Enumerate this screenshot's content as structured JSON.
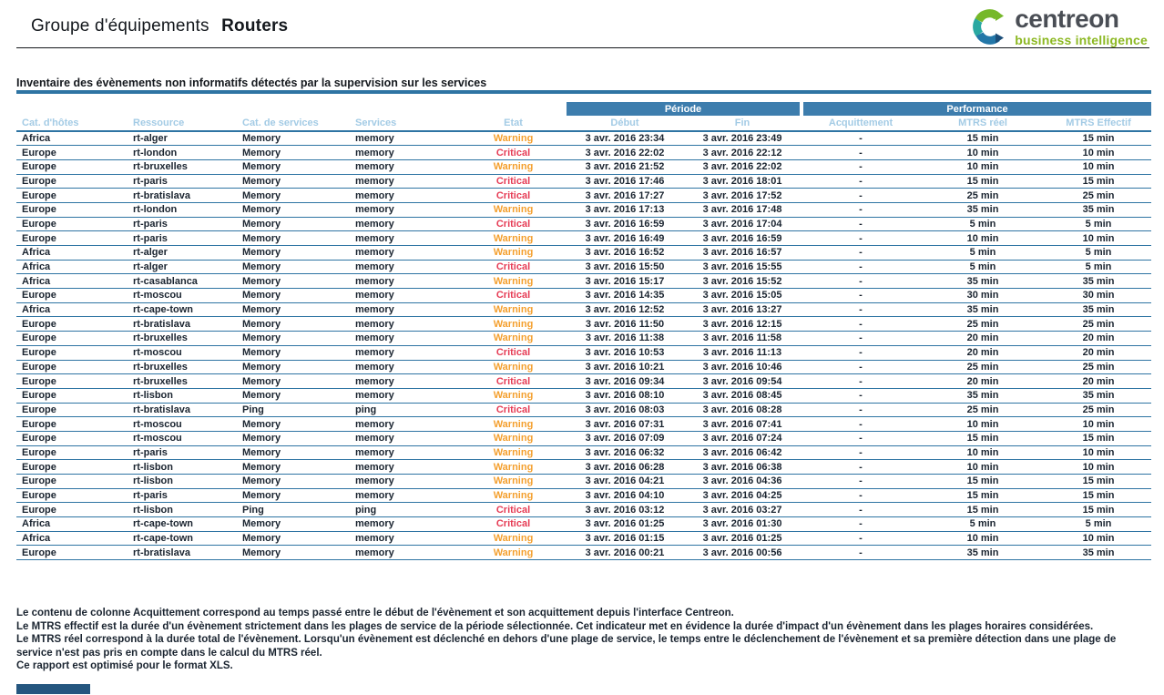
{
  "header": {
    "title_regular": "Groupe d'équipements",
    "title_bold": "Routers",
    "logo": {
      "name": "centreon",
      "tagline": "business intelligence"
    }
  },
  "section": {
    "title": "Inventaire des évènements non informatifs détectés par la supervision sur les services"
  },
  "table": {
    "group_headers": {
      "periode": "Période",
      "performance": "Performance"
    },
    "columns": [
      "Cat. d'hôtes",
      "Ressource",
      "Cat. de services",
      "Services",
      "Etat",
      "Début",
      "Fin",
      "Acquittement",
      "MTRS réel",
      "MTRS Effectif"
    ],
    "column_keys": [
      "host-category",
      "resource",
      "service-category",
      "service",
      "state",
      "start",
      "end",
      "acknowledgement",
      "mtrs-real",
      "mtrs-effective"
    ],
    "rows": [
      [
        "Africa",
        "rt-alger",
        "Memory",
        "memory",
        "Warning",
        "3 avr. 2016 23:34",
        "3 avr. 2016 23:49",
        "-",
        "15 min",
        "15 min"
      ],
      [
        "Europe",
        "rt-london",
        "Memory",
        "memory",
        "Critical",
        "3 avr. 2016 22:02",
        "3 avr. 2016 22:12",
        "-",
        "10 min",
        "10 min"
      ],
      [
        "Europe",
        "rt-bruxelles",
        "Memory",
        "memory",
        "Warning",
        "3 avr. 2016 21:52",
        "3 avr. 2016 22:02",
        "-",
        "10 min",
        "10 min"
      ],
      [
        "Europe",
        "rt-paris",
        "Memory",
        "memory",
        "Critical",
        "3 avr. 2016 17:46",
        "3 avr. 2016 18:01",
        "-",
        "15 min",
        "15 min"
      ],
      [
        "Europe",
        "rt-bratislava",
        "Memory",
        "memory",
        "Critical",
        "3 avr. 2016 17:27",
        "3 avr. 2016 17:52",
        "-",
        "25 min",
        "25 min"
      ],
      [
        "Europe",
        "rt-london",
        "Memory",
        "memory",
        "Warning",
        "3 avr. 2016 17:13",
        "3 avr. 2016 17:48",
        "-",
        "35 min",
        "35 min"
      ],
      [
        "Europe",
        "rt-paris",
        "Memory",
        "memory",
        "Critical",
        "3 avr. 2016 16:59",
        "3 avr. 2016 17:04",
        "-",
        "5 min",
        "5 min"
      ],
      [
        "Europe",
        "rt-paris",
        "Memory",
        "memory",
        "Warning",
        "3 avr. 2016 16:49",
        "3 avr. 2016 16:59",
        "-",
        "10 min",
        "10 min"
      ],
      [
        "Africa",
        "rt-alger",
        "Memory",
        "memory",
        "Warning",
        "3 avr. 2016 16:52",
        "3 avr. 2016 16:57",
        "-",
        "5 min",
        "5 min"
      ],
      [
        "Africa",
        "rt-alger",
        "Memory",
        "memory",
        "Critical",
        "3 avr. 2016 15:50",
        "3 avr. 2016 15:55",
        "-",
        "5 min",
        "5 min"
      ],
      [
        "Africa",
        "rt-casablanca",
        "Memory",
        "memory",
        "Warning",
        "3 avr. 2016 15:17",
        "3 avr. 2016 15:52",
        "-",
        "35 min",
        "35 min"
      ],
      [
        "Europe",
        "rt-moscou",
        "Memory",
        "memory",
        "Critical",
        "3 avr. 2016 14:35",
        "3 avr. 2016 15:05",
        "-",
        "30 min",
        "30 min"
      ],
      [
        "Africa",
        "rt-cape-town",
        "Memory",
        "memory",
        "Warning",
        "3 avr. 2016 12:52",
        "3 avr. 2016 13:27",
        "-",
        "35 min",
        "35 min"
      ],
      [
        "Europe",
        "rt-bratislava",
        "Memory",
        "memory",
        "Warning",
        "3 avr. 2016 11:50",
        "3 avr. 2016 12:15",
        "-",
        "25 min",
        "25 min"
      ],
      [
        "Europe",
        "rt-bruxelles",
        "Memory",
        "memory",
        "Warning",
        "3 avr. 2016 11:38",
        "3 avr. 2016 11:58",
        "-",
        "20 min",
        "20 min"
      ],
      [
        "Europe",
        "rt-moscou",
        "Memory",
        "memory",
        "Critical",
        "3 avr. 2016 10:53",
        "3 avr. 2016 11:13",
        "-",
        "20 min",
        "20 min"
      ],
      [
        "Europe",
        "rt-bruxelles",
        "Memory",
        "memory",
        "Warning",
        "3 avr. 2016 10:21",
        "3 avr. 2016 10:46",
        "-",
        "25 min",
        "25 min"
      ],
      [
        "Europe",
        "rt-bruxelles",
        "Memory",
        "memory",
        "Critical",
        "3 avr. 2016 09:34",
        "3 avr. 2016 09:54",
        "-",
        "20 min",
        "20 min"
      ],
      [
        "Europe",
        "rt-lisbon",
        "Memory",
        "memory",
        "Warning",
        "3 avr. 2016 08:10",
        "3 avr. 2016 08:45",
        "-",
        "35 min",
        "35 min"
      ],
      [
        "Europe",
        "rt-bratislava",
        "Ping",
        "ping",
        "Critical",
        "3 avr. 2016 08:03",
        "3 avr. 2016 08:28",
        "-",
        "25 min",
        "25 min"
      ],
      [
        "Europe",
        "rt-moscou",
        "Memory",
        "memory",
        "Warning",
        "3 avr. 2016 07:31",
        "3 avr. 2016 07:41",
        "-",
        "10 min",
        "10 min"
      ],
      [
        "Europe",
        "rt-moscou",
        "Memory",
        "memory",
        "Warning",
        "3 avr. 2016 07:09",
        "3 avr. 2016 07:24",
        "-",
        "15 min",
        "15 min"
      ],
      [
        "Europe",
        "rt-paris",
        "Memory",
        "memory",
        "Warning",
        "3 avr. 2016 06:32",
        "3 avr. 2016 06:42",
        "-",
        "10 min",
        "10 min"
      ],
      [
        "Europe",
        "rt-lisbon",
        "Memory",
        "memory",
        "Warning",
        "3 avr. 2016 06:28",
        "3 avr. 2016 06:38",
        "-",
        "10 min",
        "10 min"
      ],
      [
        "Europe",
        "rt-lisbon",
        "Memory",
        "memory",
        "Warning",
        "3 avr. 2016 04:21",
        "3 avr. 2016 04:36",
        "-",
        "15 min",
        "15 min"
      ],
      [
        "Europe",
        "rt-paris",
        "Memory",
        "memory",
        "Warning",
        "3 avr. 2016 04:10",
        "3 avr. 2016 04:25",
        "-",
        "15 min",
        "15 min"
      ],
      [
        "Europe",
        "rt-lisbon",
        "Ping",
        "ping",
        "Critical",
        "3 avr. 2016 03:12",
        "3 avr. 2016 03:27",
        "-",
        "15 min",
        "15 min"
      ],
      [
        "Africa",
        "rt-cape-town",
        "Memory",
        "memory",
        "Critical",
        "3 avr. 2016 01:25",
        "3 avr. 2016 01:30",
        "-",
        "5 min",
        "5 min"
      ],
      [
        "Africa",
        "rt-cape-town",
        "Memory",
        "memory",
        "Warning",
        "3 avr. 2016 01:15",
        "3 avr. 2016 01:25",
        "-",
        "10 min",
        "10 min"
      ],
      [
        "Europe",
        "rt-bratislava",
        "Memory",
        "memory",
        "Warning",
        "3 avr. 2016 00:21",
        "3 avr. 2016 00:56",
        "-",
        "35 min",
        "35 min"
      ]
    ]
  },
  "footer": {
    "notes": [
      "Le contenu de colonne Acquittement correspond au temps passé entre le début de l'évènement et son acquittement depuis l'interface Centreon.",
      "Le MTRS effectif est la durée d'un évènement strictement dans les plages de service de la période sélectionnée. Cet indicateur met en évidence la durée d'impact d'un évènement dans les plages horaires considérées.",
      "Le MTRS réel correspond à la durée total de l'évènement. Lorsqu'un évènement est déclenché en dehors d'une plage de service, le temps entre le déclenchement de l'évènement et sa première détection dans une plage de service n'est pas pris en compte dans le calcul du MTRS réel.",
      "Ce rapport est optimisé pour le format XLS."
    ]
  },
  "colors": {
    "table_header_bg": "#3d7dad",
    "column_header_text": "#a3cbe5",
    "row_line": "#2e74a3",
    "body_text": "#1a2430",
    "state": {
      "Warning": "#f49f2d",
      "Critical": "#e63c55"
    },
    "logo_gray": "#4a4e55",
    "logo_green": "#8cb822",
    "footer_marker": "#25567f"
  }
}
